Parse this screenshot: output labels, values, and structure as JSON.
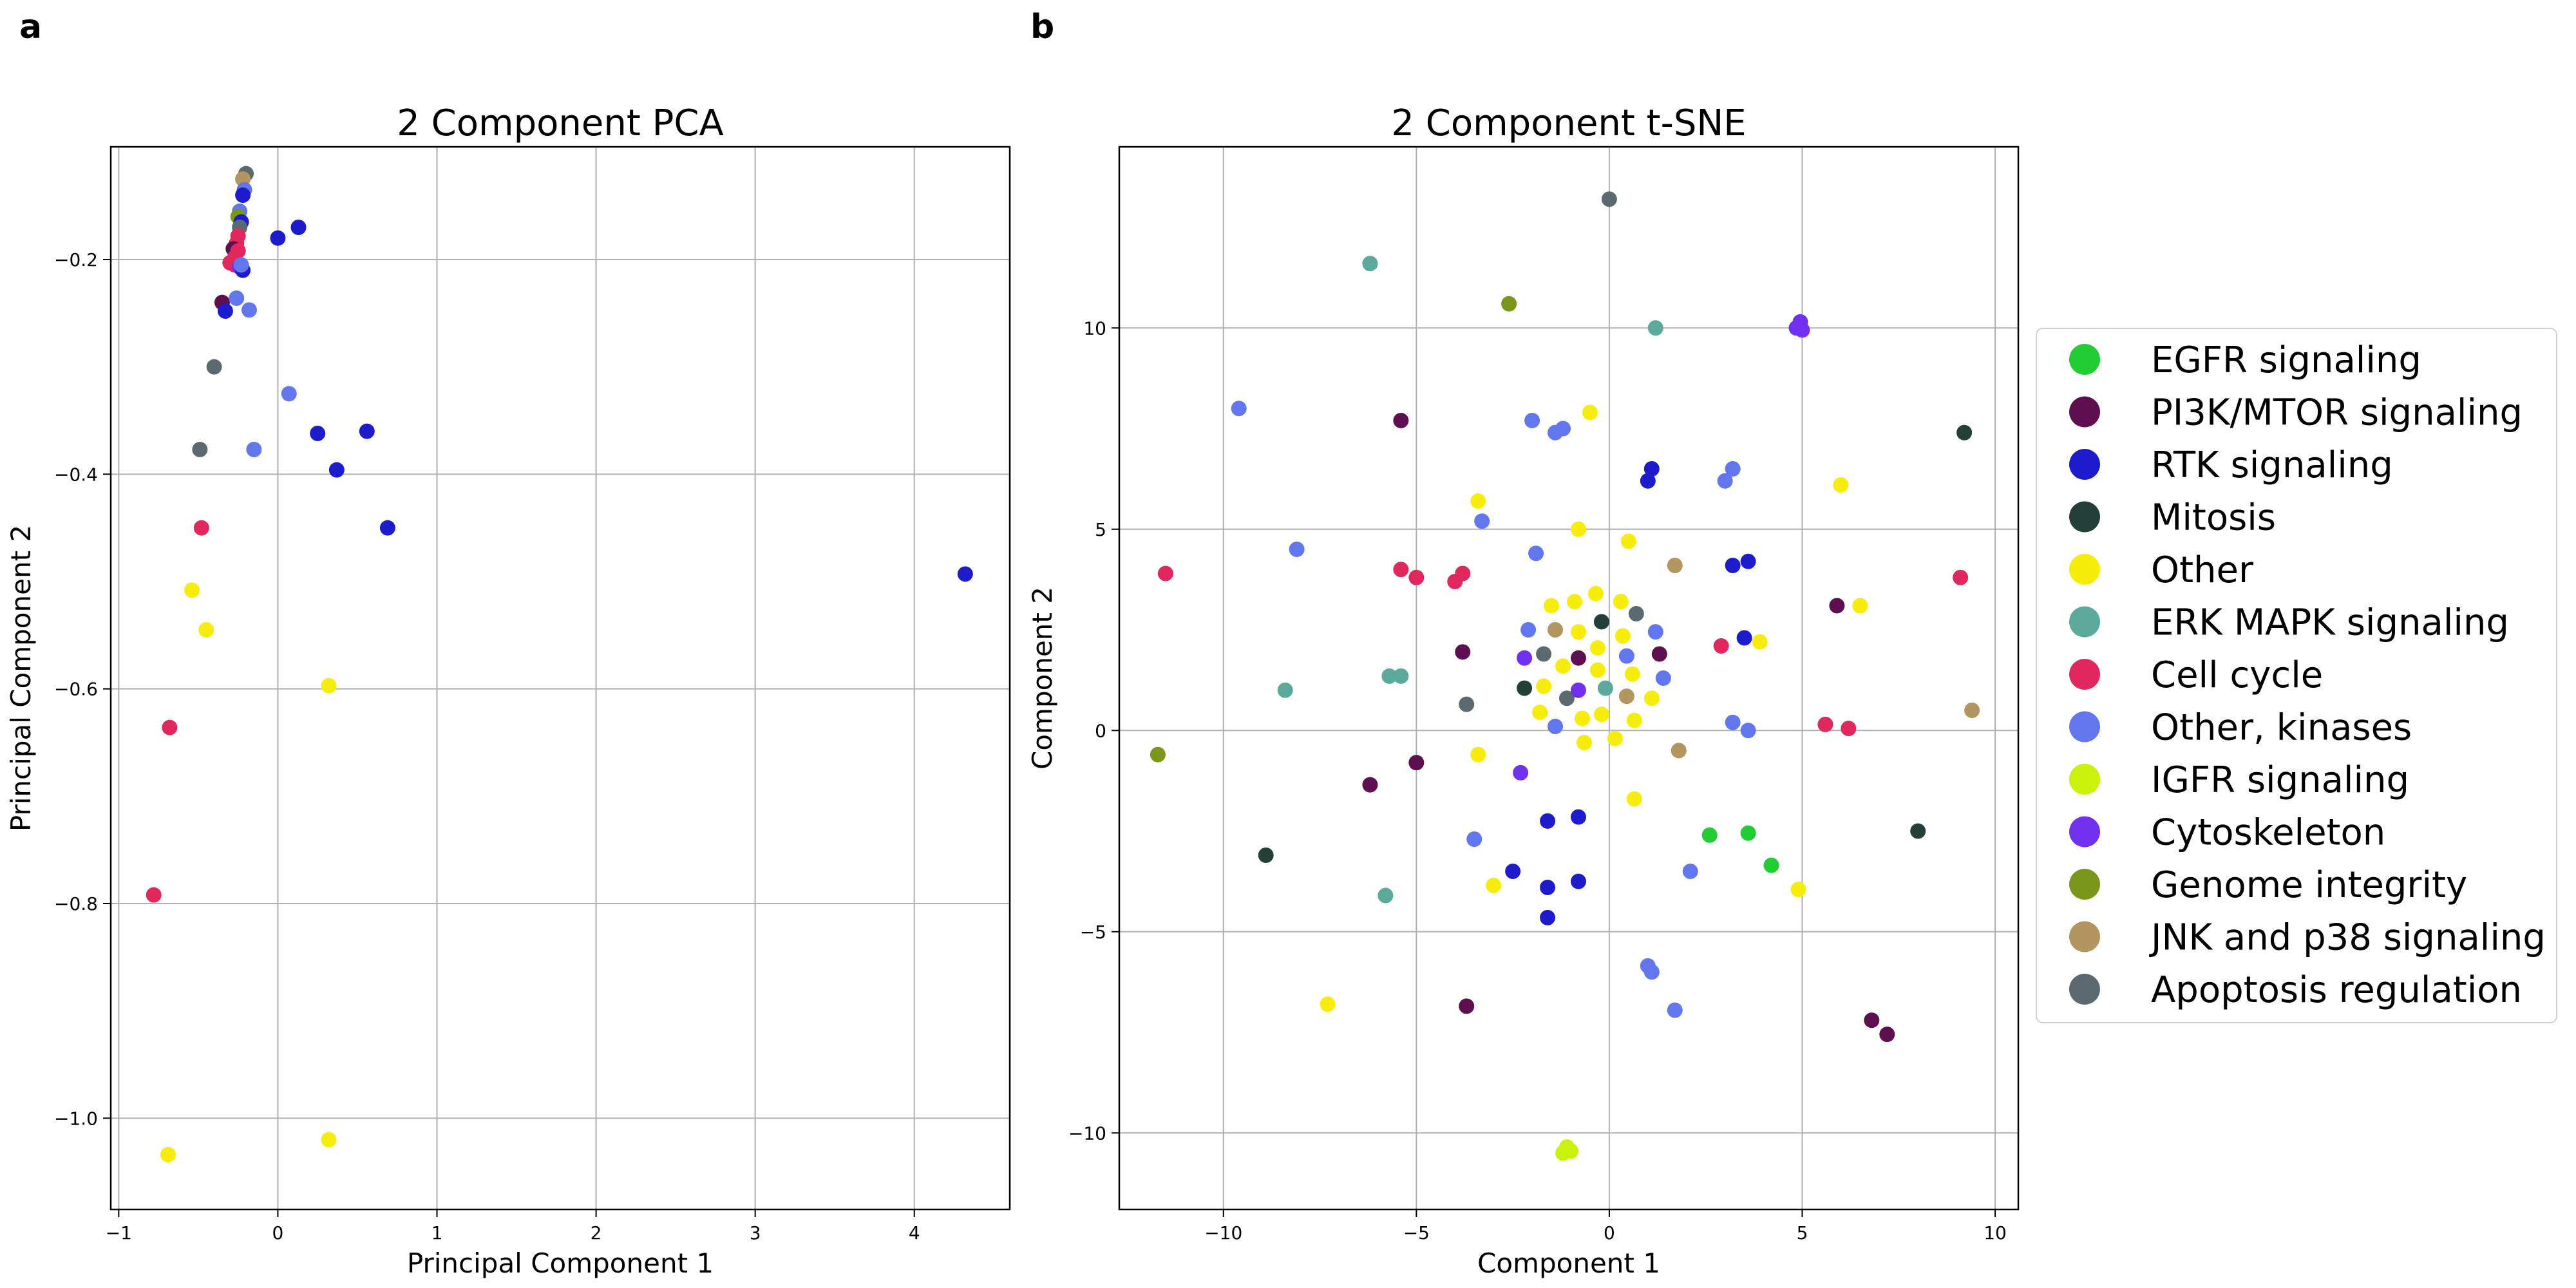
{
  "panel_labels": [
    "a",
    "b"
  ],
  "legend": {
    "entries": [
      {
        "name": "EGFR signaling",
        "color": "#22cc33"
      },
      {
        "name": "PI3K/MTOR signaling",
        "color": "#5e0f4f"
      },
      {
        "name": "RTK signaling",
        "color": "#1c1ccc"
      },
      {
        "name": "Mitosis",
        "color": "#233f37"
      },
      {
        "name": "Other",
        "color": "#f6ee0a"
      },
      {
        "name": "ERK MAPK signaling",
        "color": "#5aa99a"
      },
      {
        "name": "Cell cycle",
        "color": "#e0285f"
      },
      {
        "name": "Other, kinases",
        "color": "#6277ee"
      },
      {
        "name": "IGFR signaling",
        "color": "#c8f20a"
      },
      {
        "name": "Cytoskeleton",
        "color": "#7031ee"
      },
      {
        "name": "Genome integrity",
        "color": "#7a961b"
      },
      {
        "name": "JNK and p38 signaling",
        "color": "#b39560"
      },
      {
        "name": "Apoptosis regulation",
        "color": "#5a6a70"
      }
    ]
  },
  "chart_data": [
    {
      "type": "scatter",
      "title": "2 Component PCA",
      "xlabel": "Principal Component 1",
      "ylabel": "Principal Component 2",
      "xlim": [
        -1.05,
        4.6
      ],
      "ylim": [
        -1.085,
        -0.095
      ],
      "xticks": [
        -1,
        0,
        1,
        2,
        3,
        4
      ],
      "yticks": [
        -1.0,
        -0.8,
        -0.6,
        -0.4,
        -0.2
      ],
      "ytick_labels": [
        "−1.0",
        "−0.8",
        "−0.6",
        "−0.4",
        "−0.2"
      ],
      "xtick_labels": [
        "−1",
        "0",
        "1",
        "2",
        "3",
        "4"
      ],
      "grid": true,
      "points": [
        {
          "x": -0.2,
          "y": -0.12,
          "c": 12
        },
        {
          "x": -0.22,
          "y": -0.125,
          "c": 11
        },
        {
          "x": -0.21,
          "y": -0.135,
          "c": 7
        },
        {
          "x": -0.22,
          "y": -0.14,
          "c": 2
        },
        {
          "x": -0.24,
          "y": -0.155,
          "c": 7
        },
        {
          "x": -0.25,
          "y": -0.16,
          "c": 10
        },
        {
          "x": -0.23,
          "y": -0.165,
          "c": 2
        },
        {
          "x": -0.24,
          "y": -0.17,
          "c": 12
        },
        {
          "x": -0.25,
          "y": -0.178,
          "c": 6
        },
        {
          "x": -0.26,
          "y": -0.185,
          "c": 6
        },
        {
          "x": -0.28,
          "y": -0.19,
          "c": 1
        },
        {
          "x": -0.25,
          "y": -0.192,
          "c": 6
        },
        {
          "x": -0.27,
          "y": -0.198,
          "c": 6
        },
        {
          "x": -0.3,
          "y": -0.203,
          "c": 6
        },
        {
          "x": -0.27,
          "y": -0.205,
          "c": 6
        },
        {
          "x": -0.24,
          "y": -0.207,
          "c": 9
        },
        {
          "x": -0.22,
          "y": -0.21,
          "c": 2
        },
        {
          "x": -0.23,
          "y": -0.205,
          "c": 7
        },
        {
          "x": 0.0,
          "y": -0.18,
          "c": 2
        },
        {
          "x": 0.13,
          "y": -0.17,
          "c": 2
        },
        {
          "x": -0.35,
          "y": -0.24,
          "c": 1
        },
        {
          "x": -0.33,
          "y": -0.248,
          "c": 2
        },
        {
          "x": -0.26,
          "y": -0.236,
          "c": 7
        },
        {
          "x": -0.18,
          "y": -0.247,
          "c": 7
        },
        {
          "x": -0.4,
          "y": -0.3,
          "c": 12
        },
        {
          "x": 0.07,
          "y": -0.325,
          "c": 7
        },
        {
          "x": 0.25,
          "y": -0.362,
          "c": 2
        },
        {
          "x": 0.56,
          "y": -0.36,
          "c": 2
        },
        {
          "x": -0.49,
          "y": -0.377,
          "c": 12
        },
        {
          "x": -0.15,
          "y": -0.377,
          "c": 7
        },
        {
          "x": 0.37,
          "y": -0.396,
          "c": 2
        },
        {
          "x": 0.69,
          "y": -0.45,
          "c": 2
        },
        {
          "x": -0.48,
          "y": -0.45,
          "c": 6
        },
        {
          "x": -0.54,
          "y": -0.508,
          "c": 4
        },
        {
          "x": -0.45,
          "y": -0.545,
          "c": 4
        },
        {
          "x": 4.32,
          "y": -0.493,
          "c": 2
        },
        {
          "x": 0.32,
          "y": -0.597,
          "c": 4
        },
        {
          "x": -0.68,
          "y": -0.636,
          "c": 6
        },
        {
          "x": -0.78,
          "y": -0.792,
          "c": 6
        },
        {
          "x": 0.32,
          "y": -1.02,
          "c": 4
        },
        {
          "x": -0.69,
          "y": -1.034,
          "c": 4
        }
      ]
    },
    {
      "type": "scatter",
      "title": "2 Component t-SNE",
      "xlabel": "Component 1",
      "ylabel": "Component 2",
      "xlim": [
        -12.7,
        10.6
      ],
      "ylim": [
        -11.9,
        14.5
      ],
      "xticks": [
        -10,
        -5,
        0,
        5,
        10
      ],
      "xtick_labels": [
        "−10",
        "−5",
        "0",
        "5",
        "10"
      ],
      "yticks": [
        -10,
        -5,
        0,
        5,
        10
      ],
      "ytick_labels": [
        "−10",
        "−5",
        "0",
        "5",
        "10"
      ],
      "grid": true,
      "points": [
        {
          "x": 0.0,
          "y": 13.2,
          "c": 12
        },
        {
          "x": -6.2,
          "y": 11.6,
          "c": 5
        },
        {
          "x": -2.6,
          "y": 10.6,
          "c": 10
        },
        {
          "x": 1.2,
          "y": 10.0,
          "c": 5
        },
        {
          "x": 4.85,
          "y": 10.0,
          "c": 9
        },
        {
          "x": 4.95,
          "y": 10.15,
          "c": 9
        },
        {
          "x": 5.0,
          "y": 9.95,
          "c": 9
        },
        {
          "x": 9.2,
          "y": 7.4,
          "c": 3
        },
        {
          "x": -9.6,
          "y": 8.0,
          "c": 7
        },
        {
          "x": -5.4,
          "y": 7.7,
          "c": 1
        },
        {
          "x": -0.5,
          "y": 7.9,
          "c": 4
        },
        {
          "x": -2.0,
          "y": 7.7,
          "c": 7
        },
        {
          "x": -1.4,
          "y": 7.4,
          "c": 7
        },
        {
          "x": -1.2,
          "y": 7.5,
          "c": 7
        },
        {
          "x": 1.1,
          "y": 6.5,
          "c": 2
        },
        {
          "x": 1.0,
          "y": 6.2,
          "c": 2
        },
        {
          "x": 3.2,
          "y": 6.5,
          "c": 7
        },
        {
          "x": 3.0,
          "y": 6.2,
          "c": 7
        },
        {
          "x": 6.0,
          "y": 6.1,
          "c": 4
        },
        {
          "x": -3.4,
          "y": 5.7,
          "c": 4
        },
        {
          "x": -3.3,
          "y": 5.2,
          "c": 7
        },
        {
          "x": -0.8,
          "y": 5.0,
          "c": 4
        },
        {
          "x": 0.5,
          "y": 4.7,
          "c": 4
        },
        {
          "x": -8.1,
          "y": 4.5,
          "c": 7
        },
        {
          "x": -1.9,
          "y": 4.4,
          "c": 7
        },
        {
          "x": -11.5,
          "y": 3.9,
          "c": 6
        },
        {
          "x": -5.4,
          "y": 4.0,
          "c": 6
        },
        {
          "x": -5.0,
          "y": 3.8,
          "c": 6
        },
        {
          "x": -4.0,
          "y": 3.7,
          "c": 6
        },
        {
          "x": -3.8,
          "y": 3.9,
          "c": 6
        },
        {
          "x": 1.7,
          "y": 4.1,
          "c": 11
        },
        {
          "x": 3.2,
          "y": 4.1,
          "c": 2
        },
        {
          "x": 3.6,
          "y": 4.2,
          "c": 2
        },
        {
          "x": 9.1,
          "y": 3.8,
          "c": 6
        },
        {
          "x": 5.9,
          "y": 3.1,
          "c": 1
        },
        {
          "x": 6.5,
          "y": 3.1,
          "c": 4
        },
        {
          "x": -1.5,
          "y": 3.1,
          "c": 4
        },
        {
          "x": -0.9,
          "y": 3.2,
          "c": 4
        },
        {
          "x": -0.35,
          "y": 3.4,
          "c": 4
        },
        {
          "x": 0.3,
          "y": 3.2,
          "c": 4
        },
        {
          "x": 0.7,
          "y": 2.9,
          "c": 12
        },
        {
          "x": -0.2,
          "y": 2.7,
          "c": 3
        },
        {
          "x": -2.1,
          "y": 2.5,
          "c": 7
        },
        {
          "x": -1.4,
          "y": 2.5,
          "c": 11
        },
        {
          "x": -0.8,
          "y": 2.45,
          "c": 4
        },
        {
          "x": 0.35,
          "y": 2.35,
          "c": 4
        },
        {
          "x": 1.2,
          "y": 2.45,
          "c": 7
        },
        {
          "x": 2.9,
          "y": 2.1,
          "c": 6
        },
        {
          "x": 3.5,
          "y": 2.3,
          "c": 2
        },
        {
          "x": 3.9,
          "y": 2.2,
          "c": 4
        },
        {
          "x": -3.8,
          "y": 1.95,
          "c": 1
        },
        {
          "x": -1.7,
          "y": 1.9,
          "c": 12
        },
        {
          "x": -0.3,
          "y": 2.05,
          "c": 4
        },
        {
          "x": 0.45,
          "y": 1.85,
          "c": 7
        },
        {
          "x": 1.3,
          "y": 1.9,
          "c": 1
        },
        {
          "x": -2.2,
          "y": 1.8,
          "c": 9
        },
        {
          "x": -1.2,
          "y": 1.6,
          "c": 4
        },
        {
          "x": -0.8,
          "y": 1.8,
          "c": 1
        },
        {
          "x": -0.3,
          "y": 1.5,
          "c": 4
        },
        {
          "x": 0.6,
          "y": 1.4,
          "c": 4
        },
        {
          "x": 1.4,
          "y": 1.3,
          "c": 7
        },
        {
          "x": -8.4,
          "y": 1.0,
          "c": 5
        },
        {
          "x": -5.7,
          "y": 1.35,
          "c": 5
        },
        {
          "x": -5.4,
          "y": 1.35,
          "c": 5
        },
        {
          "x": -2.2,
          "y": 1.05,
          "c": 3
        },
        {
          "x": -1.7,
          "y": 1.1,
          "c": 4
        },
        {
          "x": -1.1,
          "y": 0.8,
          "c": 12
        },
        {
          "x": -0.8,
          "y": 1.0,
          "c": 9
        },
        {
          "x": -0.1,
          "y": 1.05,
          "c": 5
        },
        {
          "x": 0.45,
          "y": 0.85,
          "c": 11
        },
        {
          "x": 1.1,
          "y": 0.8,
          "c": 4
        },
        {
          "x": -3.7,
          "y": 0.65,
          "c": 12
        },
        {
          "x": -1.8,
          "y": 0.45,
          "c": 4
        },
        {
          "x": -1.4,
          "y": 0.1,
          "c": 7
        },
        {
          "x": -0.7,
          "y": 0.3,
          "c": 4
        },
        {
          "x": -0.2,
          "y": 0.4,
          "c": 4
        },
        {
          "x": 0.65,
          "y": 0.25,
          "c": 4
        },
        {
          "x": 3.2,
          "y": 0.2,
          "c": 7
        },
        {
          "x": 3.6,
          "y": 0.0,
          "c": 7
        },
        {
          "x": 5.6,
          "y": 0.15,
          "c": 6
        },
        {
          "x": 6.2,
          "y": 0.05,
          "c": 6
        },
        {
          "x": 9.4,
          "y": 0.5,
          "c": 11
        },
        {
          "x": -0.65,
          "y": -0.3,
          "c": 4
        },
        {
          "x": 0.15,
          "y": -0.2,
          "c": 4
        },
        {
          "x": -11.7,
          "y": -0.6,
          "c": 10
        },
        {
          "x": -5.0,
          "y": -0.8,
          "c": 1
        },
        {
          "x": -3.4,
          "y": -0.6,
          "c": 4
        },
        {
          "x": 1.8,
          "y": -0.5,
          "c": 11
        },
        {
          "x": -6.2,
          "y": -1.35,
          "c": 1
        },
        {
          "x": -2.3,
          "y": -1.05,
          "c": 9
        },
        {
          "x": 0.65,
          "y": -1.7,
          "c": 4
        },
        {
          "x": -1.6,
          "y": -2.25,
          "c": 2
        },
        {
          "x": -0.8,
          "y": -2.15,
          "c": 2
        },
        {
          "x": 2.6,
          "y": -2.6,
          "c": 0
        },
        {
          "x": 3.6,
          "y": -2.55,
          "c": 0
        },
        {
          "x": 8.0,
          "y": -2.5,
          "c": 3
        },
        {
          "x": -8.9,
          "y": -3.1,
          "c": 3
        },
        {
          "x": -3.5,
          "y": -2.7,
          "c": 7
        },
        {
          "x": 4.2,
          "y": -3.35,
          "c": 0
        },
        {
          "x": -2.5,
          "y": -3.5,
          "c": 2
        },
        {
          "x": -1.6,
          "y": -3.9,
          "c": 2
        },
        {
          "x": -0.8,
          "y": -3.75,
          "c": 2
        },
        {
          "x": 2.1,
          "y": -3.5,
          "c": 7
        },
        {
          "x": -3.0,
          "y": -3.85,
          "c": 4
        },
        {
          "x": 4.9,
          "y": -3.95,
          "c": 4
        },
        {
          "x": -5.8,
          "y": -4.1,
          "c": 5
        },
        {
          "x": -1.6,
          "y": -4.65,
          "c": 2
        },
        {
          "x": 1.0,
          "y": -5.85,
          "c": 7
        },
        {
          "x": 1.1,
          "y": -6.0,
          "c": 7
        },
        {
          "x": -7.3,
          "y": -6.8,
          "c": 4
        },
        {
          "x": -3.7,
          "y": -6.85,
          "c": 1
        },
        {
          "x": 1.7,
          "y": -6.95,
          "c": 7
        },
        {
          "x": 6.8,
          "y": -7.2,
          "c": 1
        },
        {
          "x": 7.2,
          "y": -7.55,
          "c": 1
        },
        {
          "x": -1.1,
          "y": -10.35,
          "c": 8
        },
        {
          "x": -1.0,
          "y": -10.45,
          "c": 8
        },
        {
          "x": -1.2,
          "y": -10.5,
          "c": 8
        }
      ]
    }
  ]
}
